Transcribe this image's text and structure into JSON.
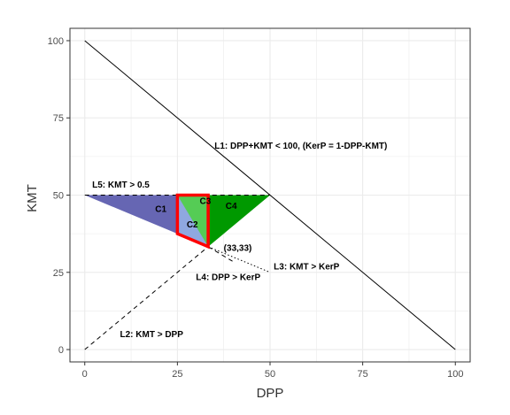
{
  "chart_data": {
    "type": "area",
    "xlabel": "DPP",
    "ylabel": "KMT",
    "xlim": [
      -4,
      104
    ],
    "ylim": [
      -4,
      104
    ],
    "x_ticks": [
      0,
      25,
      50,
      75,
      100
    ],
    "y_ticks": [
      0,
      25,
      50,
      75,
      100
    ],
    "grid": true,
    "lines": [
      {
        "id": "L1",
        "style": "solid",
        "x": [
          0,
          100
        ],
        "y": [
          100,
          0
        ]
      },
      {
        "id": "L2",
        "style": "dashed",
        "x": [
          0,
          33.3
        ],
        "y": [
          0,
          33.3
        ]
      },
      {
        "id": "L3",
        "style": "dotted",
        "x": [
          33.3,
          50
        ],
        "y": [
          33.3,
          25
        ]
      },
      {
        "id": "L4",
        "style": "dashed",
        "x": [
          33.3,
          40
        ],
        "y": [
          33.3,
          28.5
        ]
      },
      {
        "id": "L5",
        "style": "dashed",
        "x": [
          0,
          50
        ],
        "y": [
          50,
          50
        ]
      }
    ],
    "regions": [
      {
        "name": "C1",
        "color": "#6666b3",
        "x": [
          0,
          25,
          25
        ],
        "y": [
          50,
          50,
          37.5
        ]
      },
      {
        "name": "C2",
        "color": "#8fa8e0",
        "x": [
          25,
          33.3,
          33.3,
          25
        ],
        "y": [
          50,
          50,
          33.3,
          37.5
        ]
      },
      {
        "name": "C3",
        "color": "#55cc55",
        "x": [
          25,
          33.3,
          33.3
        ],
        "y": [
          50,
          50,
          33.3
        ]
      },
      {
        "name": "C4",
        "color": "#009900",
        "x": [
          33.3,
          50,
          33.3
        ],
        "y": [
          50,
          50,
          33.3
        ]
      }
    ],
    "highlight_box": {
      "color": "#ff0000",
      "x": [
        25,
        33.3,
        33.3,
        25
      ],
      "y": [
        50,
        50,
        33.3,
        37.5
      ]
    },
    "annotations": [
      {
        "text": "L1: DPP+KMT < 100, (KerP = 1-DPP-KMT)",
        "x": 35,
        "y": 65
      },
      {
        "text": "L5: KMT > 0.5",
        "x": 2,
        "y": 52.5
      },
      {
        "text": "C1",
        "x": 19,
        "y": 44.5
      },
      {
        "text": "C2",
        "x": 27.5,
        "y": 39.5
      },
      {
        "text": "C3",
        "x": 31,
        "y": 47.2
      },
      {
        "text": "C4",
        "x": 38,
        "y": 45.5
      },
      {
        "text": "(33,33)",
        "x": 37.5,
        "y": 32
      },
      {
        "text": "L3: KMT > KerP",
        "x": 51,
        "y": 26
      },
      {
        "text": "L4: DPP > KerP",
        "x": 30,
        "y": 22.5
      },
      {
        "text": "L2: KMT > DPP",
        "x": 9.5,
        "y": 4
      }
    ]
  },
  "colors": {
    "panel_background": "#ffffff",
    "grid": "#ebebeb",
    "panel_border": "#333333",
    "highlight": "#ff0000"
  }
}
